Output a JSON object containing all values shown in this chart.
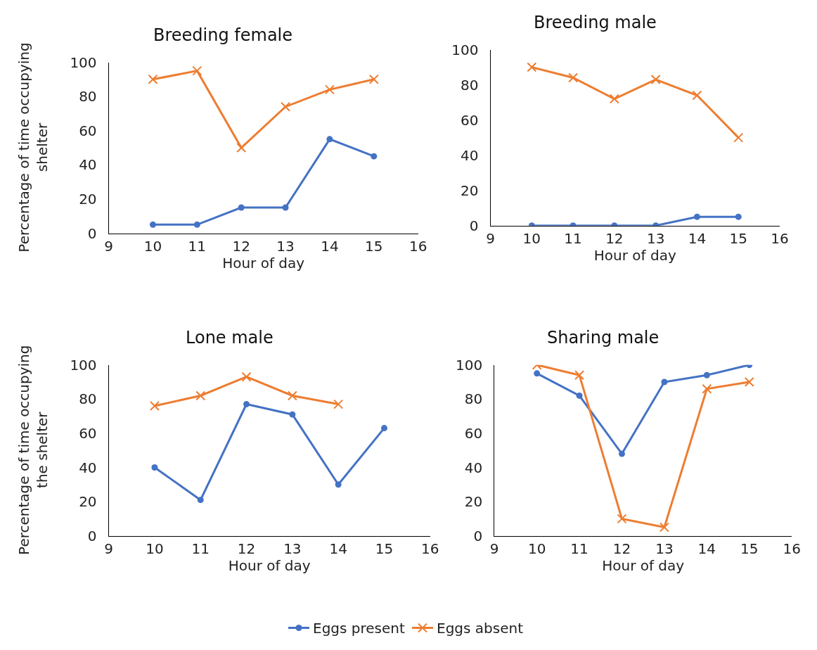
{
  "chart_data": [
    {
      "type": "line",
      "title": "Breeding female",
      "xlabel": "Hour of day",
      "ylabel": "Percentage of time occupying shelter",
      "x": [
        10,
        11,
        12,
        13,
        14,
        15
      ],
      "xlim": [
        9,
        16
      ],
      "xticks": [
        9,
        10,
        11,
        12,
        13,
        14,
        15,
        16
      ],
      "ylim": [
        0,
        100
      ],
      "yticks": [
        0,
        20,
        40,
        60,
        80,
        100
      ],
      "grid": false,
      "legend": "bottom",
      "series": [
        {
          "name": "Eggs present",
          "color": "#4472c4",
          "marker": "circle",
          "values": [
            5,
            5,
            15,
            15,
            55,
            45
          ]
        },
        {
          "name": "Eggs absent",
          "color": "#ed7d31",
          "marker": "cross",
          "values": [
            90,
            95,
            50,
            74,
            84,
            90
          ]
        }
      ]
    },
    {
      "type": "line",
      "title": "Breeding male",
      "xlabel": "Hour of day",
      "x": [
        10,
        11,
        12,
        13,
        14,
        15
      ],
      "xlim": [
        9,
        16
      ],
      "xticks": [
        9,
        10,
        11,
        12,
        13,
        14,
        15,
        16
      ],
      "ylim": [
        0,
        100
      ],
      "yticks": [
        0,
        20,
        40,
        60,
        80,
        100
      ],
      "grid": false,
      "legend": "bottom",
      "series": [
        {
          "name": "Eggs present",
          "color": "#4472c4",
          "marker": "circle",
          "values": [
            0,
            0,
            0,
            0,
            5,
            5
          ]
        },
        {
          "name": "Eggs absent",
          "color": "#ed7d31",
          "marker": "cross",
          "values": [
            90,
            84,
            72,
            83,
            74,
            50
          ]
        }
      ]
    },
    {
      "type": "line",
      "title": "Lone male",
      "xlabel": "Hour of day",
      "ylabel": "Percentage of time occupying the shelter",
      "x": [
        10,
        11,
        12,
        13,
        14,
        15
      ],
      "xlim": [
        9,
        16
      ],
      "xticks": [
        9,
        10,
        11,
        12,
        13,
        14,
        15,
        16
      ],
      "ylim": [
        0,
        100
      ],
      "yticks": [
        0,
        20,
        40,
        60,
        80,
        100
      ],
      "grid": false,
      "legend": "bottom",
      "series": [
        {
          "name": "Eggs present",
          "color": "#4472c4",
          "marker": "circle",
          "values": [
            40,
            21,
            77,
            71,
            30,
            63
          ]
        },
        {
          "name": "Eggs absent",
          "color": "#ed7d31",
          "marker": "cross",
          "values": [
            76,
            82,
            93,
            82,
            77,
            null
          ]
        }
      ]
    },
    {
      "type": "line",
      "title": "Sharing male",
      "xlabel": "Hour of day",
      "x": [
        10,
        11,
        12,
        13,
        14,
        15
      ],
      "xlim": [
        9,
        16
      ],
      "xticks": [
        9,
        10,
        11,
        12,
        13,
        14,
        15,
        16
      ],
      "ylim": [
        0,
        100
      ],
      "yticks": [
        0,
        20,
        40,
        60,
        80,
        100
      ],
      "grid": false,
      "legend": "bottom",
      "series": [
        {
          "name": "Eggs present",
          "color": "#4472c4",
          "marker": "circle",
          "values": [
            95,
            82,
            48,
            90,
            94,
            100
          ]
        },
        {
          "name": "Eggs absent",
          "color": "#ed7d31",
          "marker": "cross",
          "values": [
            100,
            94,
            10,
            5,
            86,
            90
          ]
        }
      ]
    }
  ]
}
